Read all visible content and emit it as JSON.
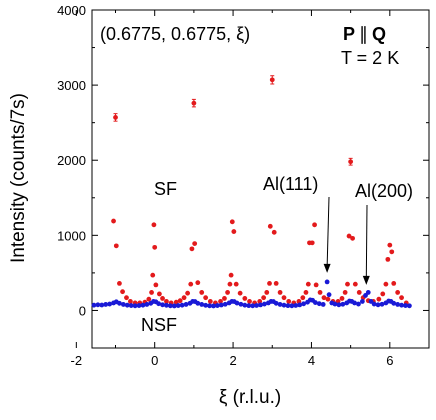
{
  "chart_data": {
    "type": "scatter",
    "xlabel": "ξ (r.l.u.)",
    "ylabel": "Intensity (counts/7s)",
    "xlim": [
      -1.5,
      7.0
    ],
    "ylim": [
      -500,
      4000
    ],
    "xticks": [
      -2,
      0,
      2,
      4,
      6
    ],
    "yticks": [
      0,
      1000,
      2000,
      3000,
      4000
    ],
    "tick_labels_x": [
      "-2",
      "0",
      "2",
      "4",
      "6"
    ],
    "tick_labels_y": [
      "0",
      "1000",
      "2000",
      "3000",
      "4000"
    ],
    "grid": false,
    "colors": {
      "sf": "#e31a1c",
      "nsf": "#1a1ad6"
    },
    "annotations": {
      "coords": "(0.6775, 0.6775, ξ)",
      "polarization_p": "P",
      "polarization_parallel": "∥",
      "polarization_q": "Q",
      "temperature": "T = 2 K",
      "sf_label": "SF",
      "nsf_label": "NSF",
      "al111": "Al(111)",
      "al200": "Al(200)"
    },
    "arrows": [
      {
        "label": "Al(111)",
        "x": 4.4,
        "y": 420
      },
      {
        "label": "Al(200)",
        "x": 5.4,
        "y": 260
      }
    ],
    "series": [
      {
        "name": "SF",
        "points": [
          [
            -1.0,
            2570
          ],
          [
            1.0,
            2760
          ],
          [
            3.0,
            3070
          ],
          [
            5.0,
            1980
          ],
          [
            -1.05,
            1190
          ],
          [
            -0.98,
            860
          ],
          [
            -0.9,
            360
          ],
          [
            -0.82,
            250
          ],
          [
            -0.72,
            170
          ],
          [
            -0.62,
            120
          ],
          [
            -0.5,
            100
          ],
          [
            -0.38,
            100
          ],
          [
            -0.25,
            110
          ],
          [
            -0.15,
            150
          ],
          [
            -0.08,
            240
          ],
          [
            -0.05,
            470
          ],
          [
            -0.02,
            1140
          ],
          [
            0.0,
            840
          ],
          [
            0.03,
            340
          ],
          [
            0.12,
            220
          ],
          [
            0.2,
            160
          ],
          [
            0.3,
            120
          ],
          [
            0.42,
            100
          ],
          [
            0.55,
            110
          ],
          [
            0.65,
            130
          ],
          [
            0.75,
            170
          ],
          [
            0.84,
            230
          ],
          [
            0.92,
            350
          ],
          [
            0.95,
            820
          ],
          [
            1.02,
            890
          ],
          [
            1.1,
            370
          ],
          [
            1.2,
            240
          ],
          [
            1.3,
            170
          ],
          [
            1.42,
            120
          ],
          [
            1.55,
            100
          ],
          [
            1.68,
            120
          ],
          [
            1.78,
            160
          ],
          [
            1.86,
            240
          ],
          [
            1.92,
            350
          ],
          [
            1.95,
            470
          ],
          [
            1.98,
            1180
          ],
          [
            2.02,
            1050
          ],
          [
            2.08,
            350
          ],
          [
            2.18,
            230
          ],
          [
            2.3,
            160
          ],
          [
            2.42,
            120
          ],
          [
            2.55,
            100
          ],
          [
            2.68,
            120
          ],
          [
            2.78,
            170
          ],
          [
            2.86,
            240
          ],
          [
            2.93,
            360
          ],
          [
            2.95,
            1120
          ],
          [
            3.05,
            1040
          ],
          [
            3.1,
            360
          ],
          [
            3.2,
            240
          ],
          [
            3.3,
            170
          ],
          [
            3.42,
            120
          ],
          [
            3.55,
            100
          ],
          [
            3.68,
            120
          ],
          [
            3.78,
            170
          ],
          [
            3.86,
            240
          ],
          [
            3.92,
            350
          ],
          [
            3.95,
            900
          ],
          [
            4.02,
            900
          ],
          [
            4.08,
            1140
          ],
          [
            4.12,
            340
          ],
          [
            4.22,
            240
          ],
          [
            4.32,
            170
          ],
          [
            4.42,
            150
          ],
          [
            4.55,
            120
          ],
          [
            4.68,
            120
          ],
          [
            4.78,
            160
          ],
          [
            4.86,
            240
          ],
          [
            4.92,
            350
          ],
          [
            4.96,
            990
          ],
          [
            5.05,
            960
          ],
          [
            5.12,
            350
          ],
          [
            5.22,
            240
          ],
          [
            5.32,
            170
          ],
          [
            5.45,
            130
          ],
          [
            5.58,
            120
          ],
          [
            5.72,
            150
          ],
          [
            5.82,
            220
          ],
          [
            5.9,
            350
          ],
          [
            5.95,
            680
          ],
          [
            6.0,
            870
          ],
          [
            6.05,
            780
          ],
          [
            6.1,
            360
          ],
          [
            6.2,
            240
          ],
          [
            6.3,
            170
          ],
          [
            6.42,
            100
          ]
        ]
      },
      {
        "name": "NSF",
        "points": [
          [
            -1.55,
            70
          ],
          [
            -1.45,
            75
          ],
          [
            -1.35,
            72
          ],
          [
            -1.25,
            80
          ],
          [
            -1.15,
            85
          ],
          [
            -1.05,
            100
          ],
          [
            -0.98,
            115
          ],
          [
            -0.9,
            95
          ],
          [
            -0.8,
            80
          ],
          [
            -0.7,
            70
          ],
          [
            -0.6,
            65
          ],
          [
            -0.5,
            62
          ],
          [
            -0.4,
            65
          ],
          [
            -0.3,
            70
          ],
          [
            -0.2,
            80
          ],
          [
            -0.1,
            95
          ],
          [
            -0.03,
            120
          ],
          [
            0.03,
            115
          ],
          [
            0.1,
            90
          ],
          [
            0.2,
            75
          ],
          [
            0.3,
            68
          ],
          [
            0.4,
            62
          ],
          [
            0.5,
            60
          ],
          [
            0.6,
            65
          ],
          [
            0.7,
            70
          ],
          [
            0.8,
            80
          ],
          [
            0.9,
            95
          ],
          [
            0.97,
            120
          ],
          [
            1.03,
            118
          ],
          [
            1.1,
            95
          ],
          [
            1.2,
            80
          ],
          [
            1.3,
            68
          ],
          [
            1.4,
            62
          ],
          [
            1.5,
            60
          ],
          [
            1.6,
            65
          ],
          [
            1.7,
            72
          ],
          [
            1.8,
            82
          ],
          [
            1.9,
            100
          ],
          [
            1.97,
            120
          ],
          [
            2.03,
            118
          ],
          [
            2.1,
            98
          ],
          [
            2.2,
            82
          ],
          [
            2.3,
            70
          ],
          [
            2.4,
            64
          ],
          [
            2.5,
            62
          ],
          [
            2.6,
            66
          ],
          [
            2.7,
            74
          ],
          [
            2.8,
            85
          ],
          [
            2.9,
            100
          ],
          [
            2.97,
            120
          ],
          [
            3.03,
            118
          ],
          [
            3.1,
            95
          ],
          [
            3.2,
            80
          ],
          [
            3.3,
            70
          ],
          [
            3.4,
            64
          ],
          [
            3.5,
            62
          ],
          [
            3.6,
            66
          ],
          [
            3.7,
            74
          ],
          [
            3.8,
            88
          ],
          [
            3.9,
            110
          ],
          [
            3.97,
            140
          ],
          [
            4.03,
            135
          ],
          [
            4.1,
            105
          ],
          [
            4.2,
            90
          ],
          [
            4.3,
            80
          ],
          [
            4.4,
            380
          ],
          [
            4.45,
            210
          ],
          [
            4.52,
            100
          ],
          [
            4.6,
            85
          ],
          [
            4.7,
            75
          ],
          [
            4.8,
            82
          ],
          [
            4.9,
            100
          ],
          [
            4.97,
            125
          ],
          [
            5.03,
            120
          ],
          [
            5.1,
            100
          ],
          [
            5.2,
            85
          ],
          [
            5.3,
            120
          ],
          [
            5.38,
            200
          ],
          [
            5.45,
            240
          ],
          [
            5.52,
            120
          ],
          [
            5.6,
            85
          ],
          [
            5.7,
            75
          ],
          [
            5.8,
            82
          ],
          [
            5.9,
            100
          ],
          [
            5.97,
            125
          ],
          [
            6.03,
            120
          ],
          [
            6.1,
            95
          ],
          [
            6.2,
            80
          ],
          [
            6.3,
            70
          ],
          [
            6.4,
            65
          ],
          [
            6.5,
            62
          ]
        ]
      }
    ],
    "errorbars": [
      {
        "x": -1.0,
        "y": 2570,
        "err": 50
      },
      {
        "x": 1.0,
        "y": 2760,
        "err": 50
      },
      {
        "x": 3.0,
        "y": 3070,
        "err": 55
      },
      {
        "x": 5.0,
        "y": 1980,
        "err": 45
      }
    ]
  }
}
